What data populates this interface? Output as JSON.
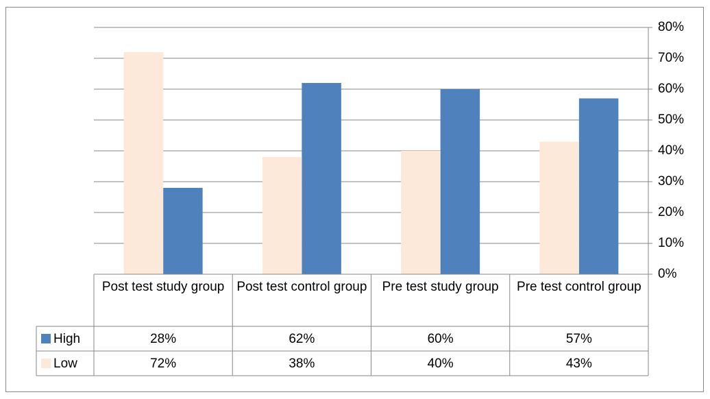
{
  "chart_data": {
    "type": "bar",
    "categories": [
      "Post test study group",
      "Post test control group",
      "Pre test study group",
      "Pre test control group"
    ],
    "series": [
      {
        "name": "High",
        "color": "#4f81bd",
        "values": [
          28,
          62,
          60,
          57
        ],
        "value_labels": [
          "28%",
          "62%",
          "60%",
          "57%"
        ]
      },
      {
        "name": "Low",
        "color": "#fde9d9",
        "values": [
          72,
          38,
          40,
          43
        ],
        "value_labels": [
          "72%",
          "38%",
          "40%",
          "43%"
        ]
      }
    ],
    "ylim": [
      0,
      80
    ],
    "yticks": [
      {
        "value": 0,
        "label": "0%"
      },
      {
        "value": 10,
        "label": "10%"
      },
      {
        "value": 20,
        "label": "20%"
      },
      {
        "value": 30,
        "label": "30%"
      },
      {
        "value": 40,
        "label": "40%"
      },
      {
        "value": 50,
        "label": "50%"
      },
      {
        "value": 60,
        "label": "60%"
      },
      {
        "value": 70,
        "label": "70%"
      },
      {
        "value": 80,
        "label": "80%"
      }
    ],
    "grid": true
  }
}
